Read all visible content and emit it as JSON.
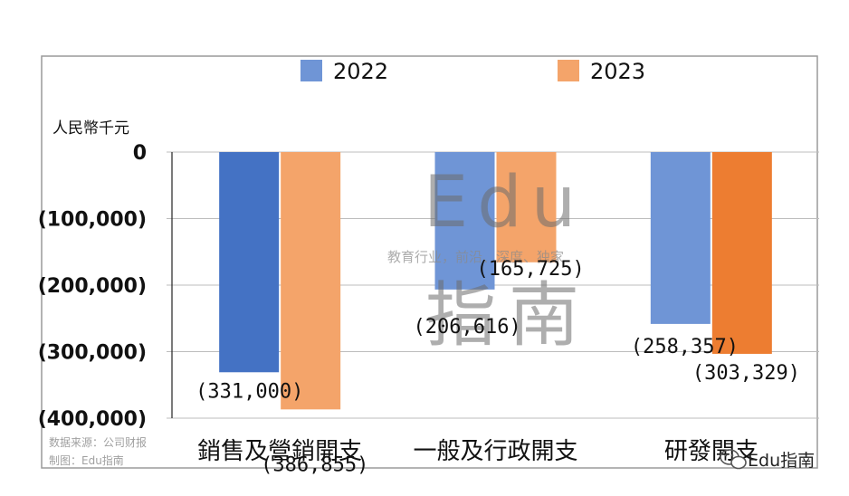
{
  "chart_data": {
    "type": "bar",
    "unit_label": "人民幣千元",
    "categories": [
      "銷售及營銷開支",
      "一般及行政開支",
      "研發開支"
    ],
    "series": [
      {
        "name": "2022",
        "values": [
          -331000,
          -206616,
          -258357
        ],
        "labels": [
          "(331,000)",
          "(206,616)",
          "(258,357)"
        ]
      },
      {
        "name": "2023",
        "values": [
          -386855,
          -165725,
          -303329
        ],
        "labels": [
          "(386,855)",
          "(165,725)",
          "(303,329)"
        ]
      }
    ],
    "y_ticks": [
      {
        "value": 0,
        "label": "0"
      },
      {
        "value": -100000,
        "label": "(100,000)"
      },
      {
        "value": -200000,
        "label": "(200,000)"
      },
      {
        "value": -300000,
        "label": "(300,000)"
      },
      {
        "value": -400000,
        "label": "(400,000)"
      }
    ],
    "ylim": [
      -400000,
      0
    ],
    "gridlines": true,
    "legend_position": "top-center",
    "bar_colors": [
      [
        "#4472c4",
        "#f4a46a"
      ],
      [
        "#6f95d6",
        "#f4a46a"
      ],
      [
        "#6f95d6",
        "#ed7d31"
      ]
    ],
    "legend_colors": [
      "#6f95d6",
      "#f4a46a"
    ]
  },
  "source": {
    "line1": "数据来源：公司财报",
    "line2": "制图：Edu指南"
  },
  "watermark": {
    "edu": "Edu",
    "guide": "指南",
    "tagline": "教育行业，前沿、深度、独家"
  },
  "wechat": {
    "icon": "wechat-icon",
    "text": "Edu指南"
  }
}
